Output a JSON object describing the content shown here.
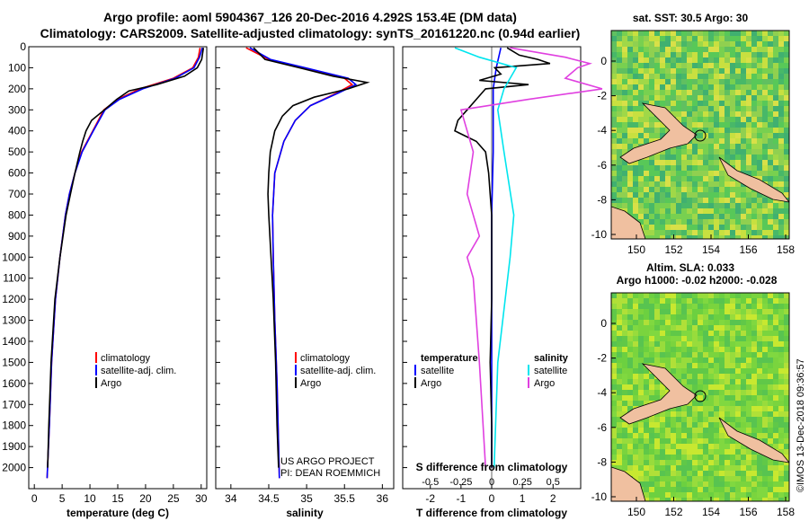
{
  "title": {
    "line1": "Argo profile: aoml 5904367_126 20-Dec-2016 4.292S 153.4E (DM data)",
    "line2": "Climatology: CARS2009. Satellite-adjusted climatology: synTS_20161220.nc (0.94d earlier)"
  },
  "colors": {
    "climatology": "#ff0000",
    "satellite": "#0000ff",
    "argo": "#000000",
    "sat_salinity": "#00e5ee",
    "salinity_argo": "#e040e0",
    "land": "#f0c0a0"
  },
  "chart_data": [
    {
      "type": "line",
      "id": "temperature",
      "xlabel": "temperature (deg C)",
      "ylabel": "",
      "xlim": [
        -1,
        31
      ],
      "ylim": [
        2100,
        0
      ],
      "xticks": [
        "0",
        "5",
        "10",
        "15",
        "20",
        "25",
        "30"
      ],
      "yticks": [
        "0",
        "100",
        "200",
        "300",
        "400",
        "500",
        "600",
        "700",
        "800",
        "900",
        "1000",
        "1100",
        "1200",
        "1300",
        "1400",
        "1500",
        "1600",
        "1700",
        "1800",
        "1900",
        "2000"
      ],
      "legend": [
        "climatology",
        "satellite-adj. clim.",
        "Argo"
      ],
      "series": [
        {
          "name": "climatology",
          "depth": [
            5,
            50,
            100,
            150,
            200,
            250,
            300,
            400,
            500,
            600,
            700,
            800,
            1000,
            1200,
            1500,
            1800,
            2050
          ],
          "values": [
            29.8,
            29.5,
            28.5,
            25,
            19,
            15,
            12.5,
            10.5,
            8.5,
            7.3,
            6.3,
            5.6,
            4.6,
            3.8,
            3.1,
            2.7,
            2.3
          ]
        },
        {
          "name": "satellite-adj. clim.",
          "depth": [
            5,
            50,
            100,
            150,
            200,
            250,
            300,
            400,
            500,
            600,
            700,
            800,
            1000,
            1200,
            1500,
            1800,
            2050
          ],
          "values": [
            30.2,
            29.7,
            28.7,
            25.3,
            19.5,
            15.3,
            12.7,
            10.6,
            8.6,
            7.3,
            6.3,
            5.6,
            4.6,
            3.8,
            3.1,
            2.7,
            2.3
          ]
        },
        {
          "name": "Argo",
          "depth": [
            5,
            60,
            100,
            140,
            180,
            210,
            250,
            300,
            350,
            400,
            450,
            500,
            600,
            700,
            800,
            1000,
            1200,
            1500,
            1800,
            2000
          ],
          "values": [
            30.4,
            30.1,
            29.3,
            27,
            22,
            17,
            14.8,
            12.6,
            10.3,
            9.3,
            8.7,
            8.2,
            7.3,
            6.5,
            5.7,
            4.6,
            3.7,
            3.0,
            2.6,
            2.4
          ]
        }
      ]
    },
    {
      "type": "line",
      "id": "salinity",
      "xlabel": "salinity",
      "xlim": [
        33.8,
        36.15
      ],
      "ylim": [
        2100,
        0
      ],
      "xticks": [
        "34",
        "34.5",
        "35",
        "35.5",
        "36"
      ],
      "legend": [
        "climatology",
        "satellite-adj. clim.",
        "Argo"
      ],
      "annotation": [
        "US ARGO PROJECT",
        "PI: DEAN ROEMMICH"
      ],
      "series": [
        {
          "name": "climatology",
          "depth": [
            5,
            60,
            100,
            150,
            180,
            220,
            280,
            350,
            450,
            600,
            800,
            1000,
            1300,
            1600,
            2050
          ],
          "values": [
            34.2,
            34.5,
            34.95,
            35.5,
            35.6,
            35.4,
            35.05,
            34.85,
            34.7,
            34.58,
            34.55,
            34.56,
            34.58,
            34.61,
            34.64
          ]
        },
        {
          "name": "satellite-adj. clim.",
          "depth": [
            5,
            60,
            100,
            150,
            180,
            220,
            280,
            350,
            450,
            600,
            800,
            1000,
            1300,
            1600,
            2050
          ],
          "values": [
            34.25,
            34.52,
            34.98,
            35.55,
            35.65,
            35.42,
            35.05,
            34.85,
            34.7,
            34.58,
            34.55,
            34.56,
            34.58,
            34.61,
            34.64
          ]
        },
        {
          "name": "Argo",
          "depth": [
            5,
            60,
            100,
            140,
            170,
            200,
            240,
            280,
            330,
            400,
            500,
            600,
            700,
            800,
            1000,
            1200,
            1500,
            1800,
            2000
          ],
          "values": [
            34.3,
            34.45,
            34.9,
            35.35,
            35.8,
            35.55,
            35.1,
            34.82,
            34.68,
            34.58,
            34.52,
            34.5,
            34.49,
            34.5,
            34.53,
            34.56,
            34.59,
            34.61,
            34.63
          ]
        }
      ]
    },
    {
      "type": "line",
      "id": "difference",
      "xlabel": "T difference from climatology",
      "xlabel_top": "S difference from climatology",
      "xlim": [
        -2.9,
        2.9
      ],
      "ylim": [
        2100,
        0
      ],
      "xticks": [
        "-2",
        "-1",
        "0",
        "1",
        "2"
      ],
      "xticks_top": [
        "-0.5",
        "-0.25",
        "0",
        "0.25",
        "0.5"
      ],
      "legend_left_title": "temperature",
      "legend_right_title": "salinity",
      "legend_left": [
        "satellite",
        "Argo"
      ],
      "legend_right": [
        "satellite",
        "Argo"
      ],
      "series": [
        {
          "name": "T satellite",
          "depth": [
            5,
            100,
            200,
            300,
            500,
            800,
            1200,
            1600,
            2000
          ],
          "values": [
            0.3,
            0.15,
            0.05,
            0.05,
            0.05,
            0,
            0,
            0,
            0
          ]
        },
        {
          "name": "T Argo",
          "depth": [
            5,
            40,
            60,
            80,
            100,
            130,
            160,
            180,
            200,
            250,
            300,
            350,
            400,
            450,
            500,
            600,
            700,
            800,
            1000,
            1200,
            1500,
            1800,
            2000
          ],
          "values": [
            0.5,
            0.9,
            1.5,
            1.9,
            0.1,
            0.3,
            -0.4,
            1.2,
            -0.2,
            -0.5,
            -0.8,
            -1.1,
            -1.2,
            -0.5,
            -0.2,
            -0.1,
            -0.05,
            0,
            0,
            0,
            -0.05,
            0,
            0
          ]
        },
        {
          "name": "S satellite",
          "depth": [
            5,
            50,
            100,
            200,
            300,
            500,
            800,
            1000,
            1500,
            2000
          ],
          "values": [
            -0.3,
            -0.1,
            0.2,
            0.1,
            0.05,
            0.1,
            0.18,
            0.15,
            0.05,
            0.02
          ]
        },
        {
          "name": "S Argo",
          "depth": [
            5,
            50,
            80,
            100,
            150,
            200,
            250,
            300,
            400,
            500,
            700,
            900,
            1000,
            1100,
            1500,
            2000
          ],
          "values": [
            0.15,
            0.6,
            0.8,
            0.7,
            0.6,
            0.9,
            0.3,
            -0.25,
            -0.2,
            -0.15,
            -0.2,
            -0.1,
            -0.2,
            -0.15,
            -0.1,
            -0.05
          ]
        }
      ]
    }
  ],
  "maps": {
    "sst": {
      "title": "sat. SST: 30.5 Argo: 30",
      "xticks": [
        "150",
        "152",
        "154",
        "156",
        "158"
      ],
      "yticks": [
        "0",
        "-2",
        "-4",
        "-6",
        "-8",
        "-10"
      ]
    },
    "sla": {
      "title1": "Altim. SLA: 0.033",
      "title2": "Argo h1000: -0.02 h2000: -0.028",
      "xticks": [
        "150",
        "152",
        "154",
        "156",
        "158"
      ],
      "yticks": [
        "0",
        "-2",
        "-4",
        "-6",
        "-8",
        "-10"
      ]
    }
  },
  "watermark": "©IMOS 13-Dec-2018 09:36:57"
}
